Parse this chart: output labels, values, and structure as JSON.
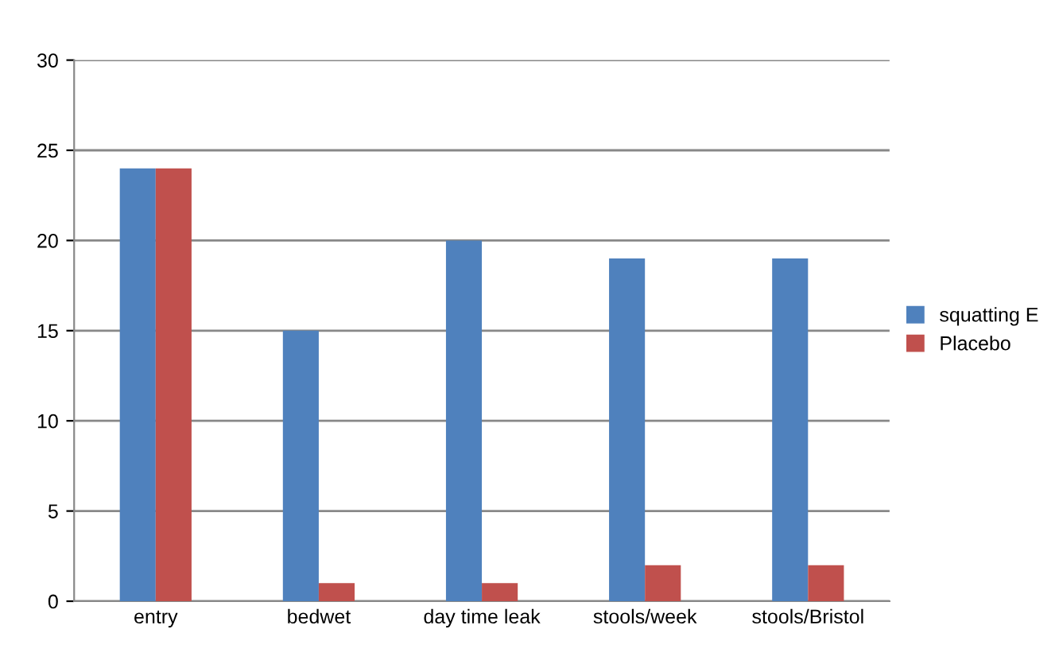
{
  "chart_data": {
    "type": "bar",
    "categories": [
      "entry",
      "bedwet",
      "day time leak",
      "stools/week",
      "stools/Bristol"
    ],
    "series": [
      {
        "name": "squatting E",
        "color": "#4f81bd",
        "values": [
          24,
          15,
          20,
          19,
          19
        ]
      },
      {
        "name": "Placebo",
        "color": "#c0504d",
        "values": [
          24,
          1,
          1,
          2,
          2
        ]
      }
    ],
    "ylim": [
      0,
      30
    ],
    "yticks": [
      0,
      5,
      10,
      15,
      20,
      25,
      30
    ],
    "grid": "y",
    "legend": "right"
  }
}
